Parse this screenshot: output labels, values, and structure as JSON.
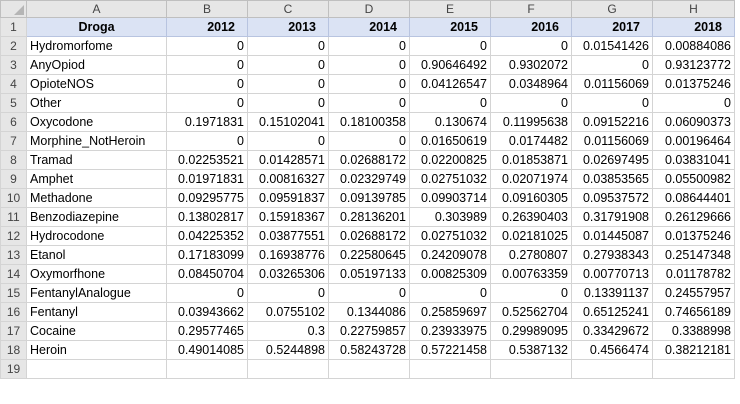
{
  "columns": [
    "A",
    "B",
    "C",
    "D",
    "E",
    "F",
    "G",
    "H"
  ],
  "header": {
    "row_number": "1",
    "label": "Droga",
    "years": [
      "2012",
      "2013",
      "2014",
      "2015",
      "2016",
      "2017",
      "2018"
    ]
  },
  "rows": [
    {
      "num": "2",
      "name": "Hydromorfome",
      "values": [
        "0",
        "0",
        "0",
        "0",
        "0",
        "0.01541426",
        "0.00884086"
      ]
    },
    {
      "num": "3",
      "name": "AnyOpiod",
      "values": [
        "0",
        "0",
        "0",
        "0.90646492",
        "0.9302072",
        "0",
        "0.93123772"
      ]
    },
    {
      "num": "4",
      "name": "OpioteNOS",
      "values": [
        "0",
        "0",
        "0",
        "0.04126547",
        "0.0348964",
        "0.01156069",
        "0.01375246"
      ]
    },
    {
      "num": "5",
      "name": "Other",
      "values": [
        "0",
        "0",
        "0",
        "0",
        "0",
        "0",
        "0"
      ]
    },
    {
      "num": "6",
      "name": "Oxycodone",
      "values": [
        "0.1971831",
        "0.15102041",
        "0.18100358",
        "0.130674",
        "0.11995638",
        "0.09152216",
        "0.06090373"
      ]
    },
    {
      "num": "7",
      "name": "Morphine_NotHeroin",
      "values": [
        "0",
        "0",
        "0",
        "0.01650619",
        "0.0174482",
        "0.01156069",
        "0.00196464"
      ]
    },
    {
      "num": "8",
      "name": "Tramad",
      "values": [
        "0.02253521",
        "0.01428571",
        "0.02688172",
        "0.02200825",
        "0.01853871",
        "0.02697495",
        "0.03831041"
      ]
    },
    {
      "num": "9",
      "name": "Amphet",
      "values": [
        "0.01971831",
        "0.00816327",
        "0.02329749",
        "0.02751032",
        "0.02071974",
        "0.03853565",
        "0.05500982"
      ]
    },
    {
      "num": "10",
      "name": "Methadone",
      "values": [
        "0.09295775",
        "0.09591837",
        "0.09139785",
        "0.09903714",
        "0.09160305",
        "0.09537572",
        "0.08644401"
      ]
    },
    {
      "num": "11",
      "name": "Benzodiazepine",
      "values": [
        "0.13802817",
        "0.15918367",
        "0.28136201",
        "0.303989",
        "0.26390403",
        "0.31791908",
        "0.26129666"
      ]
    },
    {
      "num": "12",
      "name": "Hydrocodone",
      "values": [
        "0.04225352",
        "0.03877551",
        "0.02688172",
        "0.02751032",
        "0.02181025",
        "0.01445087",
        "0.01375246"
      ]
    },
    {
      "num": "13",
      "name": "Etanol",
      "values": [
        "0.17183099",
        "0.16938776",
        "0.22580645",
        "0.24209078",
        "0.2780807",
        "0.27938343",
        "0.25147348"
      ]
    },
    {
      "num": "14",
      "name": "Oxymorfhone",
      "values": [
        "0.08450704",
        "0.03265306",
        "0.05197133",
        "0.00825309",
        "0.00763359",
        "0.00770713",
        "0.01178782"
      ]
    },
    {
      "num": "15",
      "name": "FentanylAnalogue",
      "values": [
        "0",
        "0",
        "0",
        "0",
        "0",
        "0.13391137",
        "0.24557957"
      ]
    },
    {
      "num": "16",
      "name": "Fentanyl",
      "values": [
        "0.03943662",
        "0.0755102",
        "0.1344086",
        "0.25859697",
        "0.52562704",
        "0.65125241",
        "0.74656189"
      ]
    },
    {
      "num": "17",
      "name": "Cocaine",
      "values": [
        "0.29577465",
        "0.3",
        "0.22759857",
        "0.23933975",
        "0.29989095",
        "0.33429672",
        "0.3388998"
      ]
    },
    {
      "num": "18",
      "name": "Heroin",
      "values": [
        "0.49014085",
        "0.5244898",
        "0.58243728",
        "0.57221458",
        "0.5387132",
        "0.4566474",
        "0.38212181"
      ]
    }
  ],
  "trailing_row_number": "19"
}
